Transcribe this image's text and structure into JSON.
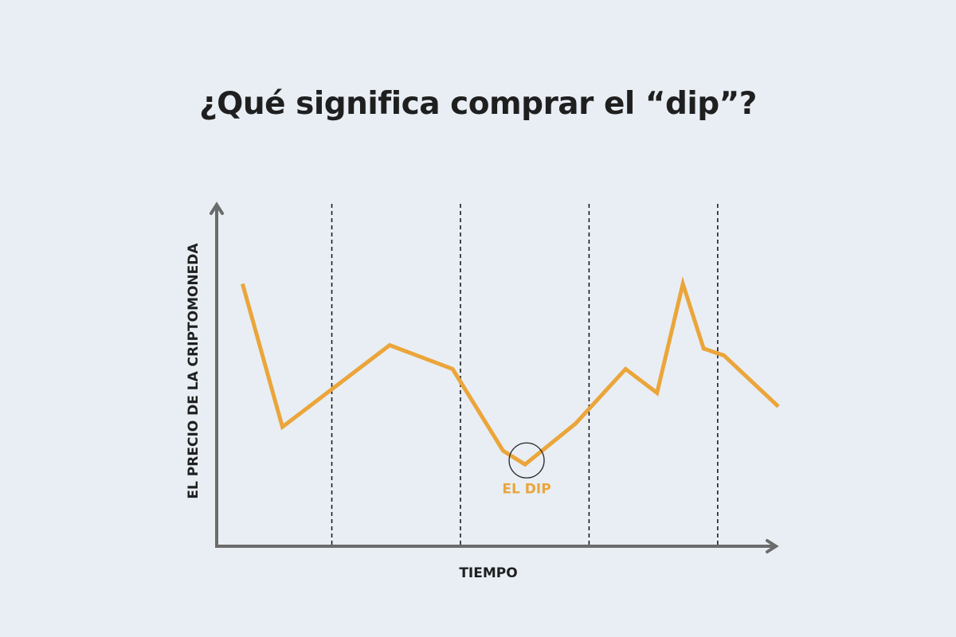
{
  "title": "¿Qué significa comprar el “dip”?",
  "colors": {
    "background": "#e8eef4",
    "line": "#eba53a",
    "axis": "#6b6b6b",
    "text": "#1f1f1f"
  },
  "chart_data": {
    "type": "line",
    "title": "¿Qué significa comprar el “dip”?",
    "xlabel": "TIEMPO",
    "ylabel": "EL PRECIO DE LA CRIPTOMONEDA",
    "xlim": [
      0,
      100
    ],
    "ylim": [
      0,
      100
    ],
    "grid": false,
    "ticks": "none",
    "vertical_dashed_lines_x": [
      20.5,
      43.4,
      66.3,
      89.2
    ],
    "x": [
      4.6,
      11.7,
      30.8,
      42,
      51,
      54.9,
      63.9,
      72.8,
      78.4,
      83,
      86.7,
      90.3,
      100
    ],
    "values": [
      77,
      35,
      59,
      52,
      28,
      24,
      36,
      52,
      45,
      77,
      58,
      56,
      41
    ],
    "annotation": {
      "text": "EL DIP",
      "point_index": 5,
      "marker": "circle"
    }
  }
}
